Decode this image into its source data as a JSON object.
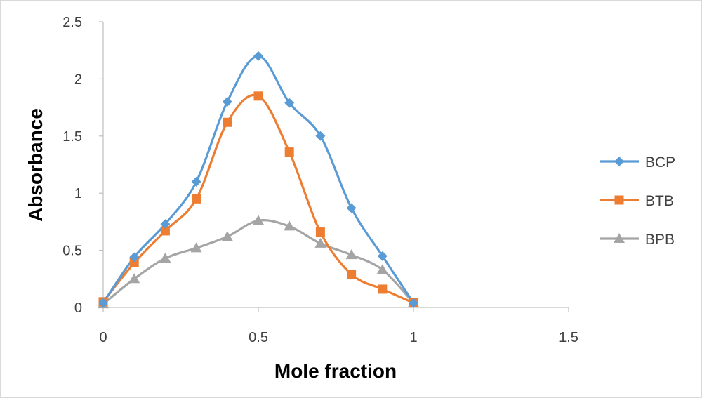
{
  "chart_data": {
    "type": "scatter",
    "mode": "smooth-lines-with-markers",
    "xlabel": "Mole fraction",
    "ylabel": "Absorbance",
    "xlim": [
      0,
      1.5
    ],
    "ylim": [
      0,
      2.5
    ],
    "xticks": [
      "0",
      "0.5",
      "1",
      "1.5"
    ],
    "yticks": [
      "0",
      "0.5",
      "1",
      "1.5",
      "2",
      "2.5"
    ],
    "grid": false,
    "legend_position": "right",
    "x": [
      0,
      0.1,
      0.2,
      0.3,
      0.4,
      0.5,
      0.6,
      0.7,
      0.8,
      0.9,
      1.0
    ],
    "series": [
      {
        "name": "BCP",
        "color": "#5b9bd5",
        "marker": "diamond",
        "values": [
          0.04,
          0.44,
          0.73,
          1.1,
          1.8,
          2.2,
          1.79,
          1.5,
          0.87,
          0.45,
          0.04
        ]
      },
      {
        "name": "BTB",
        "color": "#ed7d31",
        "marker": "square",
        "values": [
          0.05,
          0.39,
          0.67,
          0.95,
          1.62,
          1.85,
          1.36,
          0.66,
          0.29,
          0.16,
          0.04
        ]
      },
      {
        "name": "BPB",
        "color": "#a5a5a5",
        "marker": "triangle",
        "values": [
          0.03,
          0.25,
          0.43,
          0.52,
          0.62,
          0.76,
          0.71,
          0.56,
          0.46,
          0.33,
          0.04
        ]
      }
    ]
  }
}
